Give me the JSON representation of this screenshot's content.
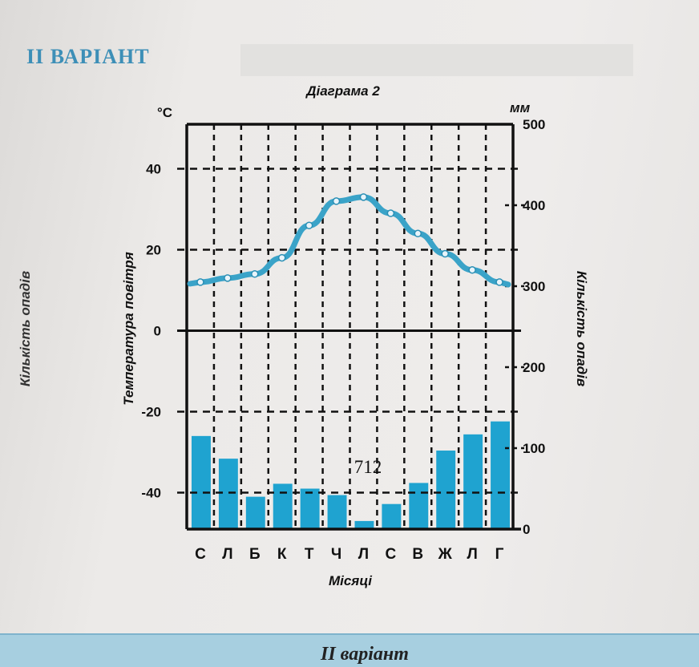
{
  "page": {
    "variant_heading": "II ВАРІАНТ",
    "side_label_fragment": "Кількість опадів",
    "footer_heading": "II варіант"
  },
  "chart_data": {
    "type": "bar+line",
    "title": "Діаграма 2",
    "xlabel": "Місяці",
    "categories": [
      "С",
      "Л",
      "Б",
      "К",
      "Т",
      "Ч",
      "Л",
      "С",
      "В",
      "Ж",
      "Л",
      "Г"
    ],
    "y_left": {
      "label": "Температура повітря",
      "unit": "°C",
      "ticks": [
        40,
        20,
        0,
        -20,
        -40
      ],
      "range": [
        -50,
        50
      ]
    },
    "y_right": {
      "label": "Кількість опадів",
      "unit": "мм",
      "ticks": [
        500,
        400,
        300,
        200,
        100,
        0
      ],
      "range": [
        0,
        500
      ]
    },
    "series": [
      {
        "name": "Температура повітря",
        "type": "line",
        "axis": "left",
        "values": [
          12,
          13,
          14,
          18,
          26,
          32,
          33,
          29,
          24,
          19,
          15,
          12
        ]
      },
      {
        "name": "Кількість опадів",
        "type": "bar",
        "axis": "right",
        "values": [
          115,
          87,
          40,
          56,
          50,
          42,
          10,
          31,
          57,
          97,
          117,
          133
        ]
      }
    ],
    "annotation": "712",
    "grid": true,
    "colors": {
      "bars": "#1fa3d0",
      "line": "#3aa3c8",
      "axis": "#111111"
    }
  }
}
